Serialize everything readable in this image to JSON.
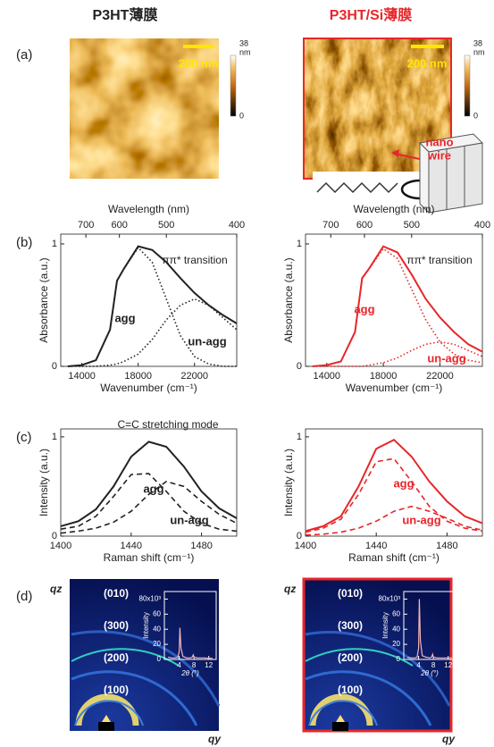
{
  "headers": {
    "left": "P3HT薄膜",
    "right": "P3HT/Si薄膜"
  },
  "panels": {
    "a": "(a)",
    "b": "(b)",
    "c": "(c)",
    "d": "(d)"
  },
  "afm": {
    "left": {
      "scale_bar": "200 nm",
      "colorbar_max": "38",
      "colorbar_unit": "nm",
      "colorbar_min": "0"
    },
    "right": {
      "scale_bar": "200 nm",
      "colorbar_max": "38",
      "colorbar_unit": "nm",
      "colorbar_min": "0",
      "inset_label": [
        "nano",
        "wire"
      ]
    }
  },
  "giwaxs": {
    "left": {
      "peaks": [
        "(010)",
        "(300)",
        "(200)",
        "(100)"
      ],
      "qz": "qz",
      "qy": "qy"
    },
    "right": {
      "peaks": [
        "(010)",
        "(300)",
        "(200)",
        "(100)"
      ],
      "qz": "qz",
      "qy": "qy"
    }
  },
  "chart_data": [
    {
      "type": "line",
      "xlabel": "Wavenumber (cm⁻¹)",
      "ylabel": "Absorbance (a.u.)",
      "x2label": "Wavelength (nm)",
      "x": [
        13000,
        14000,
        15000,
        16000,
        16500,
        17000,
        18000,
        19000,
        20000,
        21000,
        22000,
        23000,
        24000,
        25000
      ],
      "series": [
        {
          "color": "#222222",
          "style": "solid",
          "values": [
            0,
            0.01,
            0.05,
            0.3,
            0.7,
            0.8,
            0.98,
            0.95,
            0.85,
            0.72,
            0.6,
            0.5,
            0.42,
            0.35
          ]
        },
        {
          "color": "#222222",
          "style": "dotted",
          "values": [
            0,
            0.01,
            0.05,
            0.3,
            0.7,
            0.8,
            0.97,
            0.85,
            0.55,
            0.25,
            0.08,
            0.02,
            0,
            0
          ]
        },
        {
          "color": "#222222",
          "style": "dotted",
          "values": [
            0,
            0,
            0,
            0.01,
            0.02,
            0.04,
            0.1,
            0.22,
            0.38,
            0.5,
            0.55,
            0.5,
            0.4,
            0.3
          ]
        }
      ],
      "xlim": [
        12500,
        25000
      ],
      "xticks": [
        14000,
        18000,
        22000
      ],
      "x2ticks": [
        700,
        600,
        500,
        400
      ],
      "ylim": [
        0,
        1.08
      ],
      "yticks": [
        0,
        1
      ],
      "annotations": [
        "ππ* transition",
        "agg",
        "un-agg"
      ]
    },
    {
      "type": "line",
      "xlabel": "Wavenumber (cm⁻¹)",
      "ylabel": "Absorbance (a.u.)",
      "x2label": "Wavelength (nm)",
      "x": [
        13000,
        14000,
        15000,
        16000,
        16500,
        17000,
        18000,
        19000,
        20000,
        21000,
        22000,
        23000,
        24000,
        25000
      ],
      "series": [
        {
          "color": "#e8262a",
          "style": "solid",
          "values": [
            0,
            0.01,
            0.04,
            0.28,
            0.72,
            0.8,
            0.98,
            0.93,
            0.75,
            0.55,
            0.4,
            0.28,
            0.18,
            0.12
          ]
        },
        {
          "color": "#e8262a",
          "style": "dotted",
          "values": [
            0,
            0.01,
            0.04,
            0.28,
            0.72,
            0.8,
            0.96,
            0.88,
            0.63,
            0.38,
            0.2,
            0.1,
            0.05,
            0.03
          ]
        },
        {
          "color": "#e8262a",
          "style": "dotted",
          "values": [
            0,
            0,
            0,
            0,
            0,
            0.01,
            0.03,
            0.07,
            0.13,
            0.18,
            0.2,
            0.18,
            0.13,
            0.08
          ]
        }
      ],
      "xlim": [
        12500,
        25000
      ],
      "xticks": [
        14000,
        18000,
        22000
      ],
      "x2ticks": [
        700,
        600,
        500,
        400
      ],
      "ylim": [
        0,
        1.08
      ],
      "yticks": [
        0,
        1
      ],
      "annotations": [
        "ππ* transition",
        "agg",
        "un-agg"
      ]
    },
    {
      "type": "line",
      "xlabel": "Raman shift (cm⁻¹)",
      "ylabel": "Intensity (a.u.)",
      "x": [
        1400,
        1410,
        1420,
        1430,
        1440,
        1450,
        1460,
        1470,
        1480,
        1490,
        1500
      ],
      "series": [
        {
          "color": "#222222",
          "style": "solid",
          "values": [
            0.1,
            0.15,
            0.27,
            0.5,
            0.8,
            0.95,
            0.9,
            0.7,
            0.45,
            0.28,
            0.18
          ]
        },
        {
          "color": "#222222",
          "style": "dashed",
          "values": [
            0.07,
            0.1,
            0.2,
            0.4,
            0.62,
            0.63,
            0.45,
            0.25,
            0.13,
            0.07,
            0.05
          ]
        },
        {
          "color": "#222222",
          "style": "dashed",
          "values": [
            0.03,
            0.05,
            0.08,
            0.14,
            0.25,
            0.42,
            0.55,
            0.5,
            0.35,
            0.22,
            0.13
          ]
        }
      ],
      "xlim": [
        1400,
        1500
      ],
      "xticks": [
        1400,
        1440,
        1480
      ],
      "ylim": [
        0,
        1.08
      ],
      "yticks": [
        0,
        1
      ],
      "annotations": [
        "C=C stretching mode",
        "agg",
        "un-agg"
      ]
    },
    {
      "type": "line",
      "xlabel": "Raman shift (cm⁻¹)",
      "ylabel": "Intensity (a.u.)",
      "x": [
        1400,
        1410,
        1420,
        1430,
        1440,
        1450,
        1460,
        1470,
        1480,
        1490,
        1500
      ],
      "series": [
        {
          "color": "#e8262a",
          "style": "solid",
          "values": [
            0.05,
            0.1,
            0.2,
            0.5,
            0.88,
            0.97,
            0.8,
            0.55,
            0.35,
            0.2,
            0.13
          ]
        },
        {
          "color": "#e8262a",
          "style": "dashed",
          "values": [
            0.04,
            0.08,
            0.17,
            0.42,
            0.75,
            0.78,
            0.55,
            0.3,
            0.15,
            0.08,
            0.05
          ]
        },
        {
          "color": "#e8262a",
          "style": "dashed",
          "values": [
            0.01,
            0.02,
            0.04,
            0.08,
            0.15,
            0.25,
            0.3,
            0.25,
            0.18,
            0.1,
            0.06
          ]
        }
      ],
      "xlim": [
        1400,
        1500
      ],
      "xticks": [
        1400,
        1440,
        1480
      ],
      "ylim": [
        0,
        1.08
      ],
      "yticks": [
        0,
        1
      ],
      "annotations": [
        "agg",
        "un-agg"
      ]
    },
    {
      "type": "line",
      "xlabel": "2θ (°)",
      "ylabel": "Intensity",
      "x": [
        1,
        2,
        3,
        3.6,
        4,
        4.2,
        4.5,
        5,
        6,
        7,
        7.5,
        7.8,
        8,
        9,
        10,
        11,
        12,
        13
      ],
      "series": [
        {
          "color": "#f4b4b4",
          "style": "solid",
          "values": [
            3,
            2,
            2,
            3,
            10,
            42,
            15,
            4,
            2,
            2,
            3,
            6,
            3,
            2,
            2,
            2,
            1.5,
            1.5
          ]
        }
      ],
      "xlim": [
        0,
        14
      ],
      "xticks": [
        4,
        8,
        12
      ],
      "ylim": [
        0,
        90
      ],
      "yticks": [
        0,
        20,
        40,
        60,
        {
          "value": 80,
          "label": "80x10³"
        }
      ]
    },
    {
      "type": "line",
      "xlabel": "2θ (°)",
      "ylabel": "Intensity",
      "x": [
        1,
        2,
        3,
        3.6,
        4,
        4.2,
        4.5,
        5,
        6,
        7,
        7.5,
        7.8,
        8,
        9,
        10,
        11,
        12,
        13
      ],
      "series": [
        {
          "color": "#f4b4b4",
          "style": "solid",
          "values": [
            3,
            2,
            2,
            3,
            15,
            80,
            25,
            5,
            3,
            2,
            3,
            7,
            3,
            2,
            2,
            2,
            2,
            2
          ]
        }
      ],
      "xlim": [
        0,
        14
      ],
      "xticks": [
        4,
        8,
        12
      ],
      "ylim": [
        0,
        90
      ],
      "yticks": [
        0,
        20,
        40,
        60,
        {
          "value": 80,
          "label": "80x10³"
        }
      ]
    }
  ]
}
